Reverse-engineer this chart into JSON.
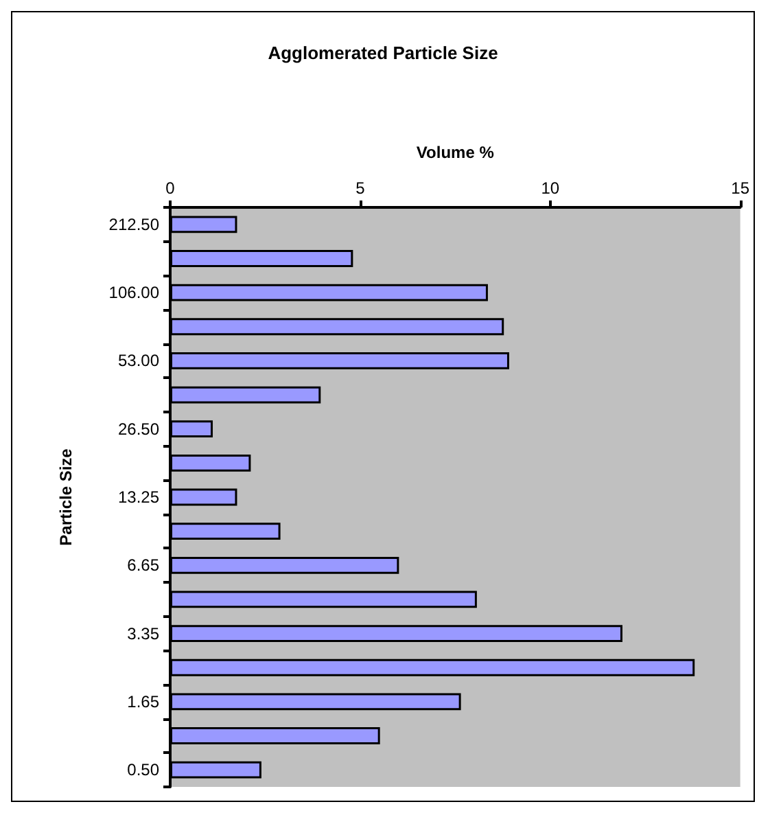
{
  "chart_data": {
    "type": "bar",
    "orientation": "horizontal",
    "title": "Agglomerated Particle Size",
    "xlabel": "Volume %",
    "ylabel": "Particle Size",
    "categories": [
      "212.50",
      null,
      "106.00",
      null,
      "53.00",
      null,
      "26.50",
      null,
      "13.25",
      null,
      "6.65",
      null,
      "3.35",
      null,
      "1.65",
      null,
      "0.50"
    ],
    "values": [
      1.76,
      4.81,
      8.36,
      8.78,
      8.92,
      3.96,
      1.12,
      2.12,
      1.76,
      2.9,
      6.02,
      8.07,
      11.9,
      13.8,
      7.65,
      5.52,
      2.4
    ],
    "color": "#9999ff",
    "xlim": [
      0,
      15
    ],
    "xticks": [
      0,
      5,
      10,
      15
    ],
    "grid": false
  }
}
